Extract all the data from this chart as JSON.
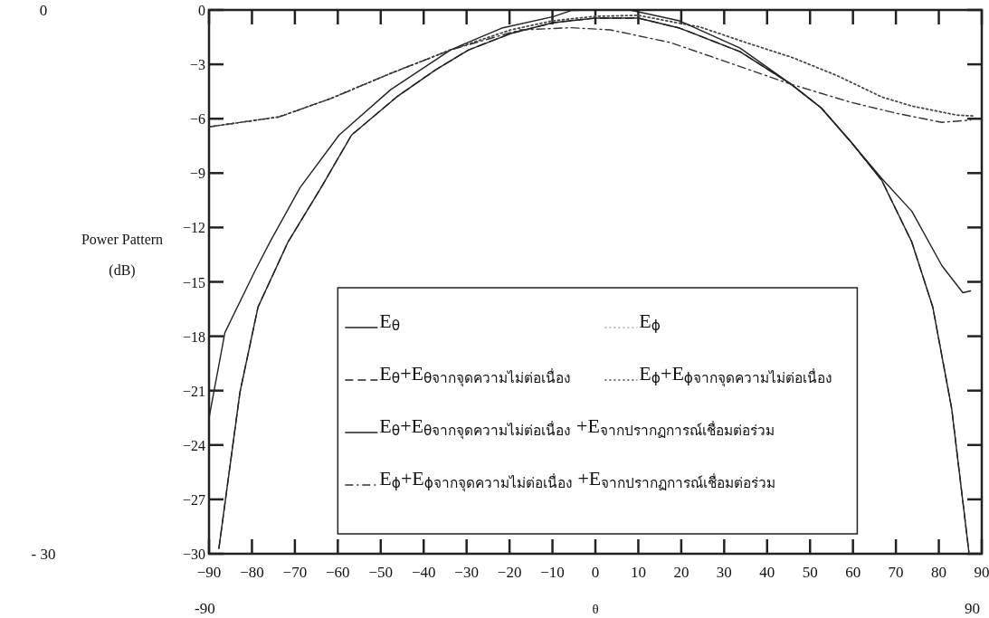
{
  "chart_data": {
    "type": "line",
    "xlabel": "θ",
    "ylabel": "Power Pattern\n(dB)",
    "xlim": [
      -90,
      90
    ],
    "xticks": [
      {
        "value": -90,
        "label": "−90"
      },
      {
        "value": -80,
        "label": "−80"
      },
      {
        "value": -70,
        "label": "−70"
      },
      {
        "value": -60,
        "label": "−60"
      },
      {
        "value": -50,
        "label": "−50"
      },
      {
        "value": -40,
        "label": "−40"
      },
      {
        "value": -30,
        "label": "−30"
      },
      {
        "value": -20,
        "label": "−20"
      },
      {
        "value": -10,
        "label": "−10"
      },
      0,
      10,
      20,
      30,
      40,
      50,
      60,
      70,
      80,
      90
    ],
    "ylim": [
      -30,
      0
    ],
    "yticks": [
      0,
      {
        "value": -3,
        "label": "−3"
      },
      {
        "value": -6,
        "label": "−6"
      },
      {
        "value": -9,
        "label": "−9"
      },
      {
        "value": -12,
        "label": "−12"
      },
      {
        "value": -15,
        "label": "−15"
      },
      {
        "value": -18,
        "label": "−18"
      },
      {
        "value": -21,
        "label": "−21"
      },
      {
        "value": -24,
        "label": "−24"
      },
      {
        "value": -27,
        "label": "−27"
      },
      {
        "value": -30,
        "label": "−30"
      }
    ],
    "grid": false,
    "legend": "bottom",
    "marker": "none",
    "annotations": [
      "0",
      "- 30",
      "-90",
      "90"
    ],
    "series": [
      {
        "name": "E$_{θ}$",
        "color": "#222222",
        "line_style": "solid",
        "x": [
          -87.7,
          -82.8,
          -78.6,
          -71.6,
          -63.9,
          -56.8,
          -46.3,
          -37.2,
          -29.5,
          -19.7,
          -9.8,
          0,
          10,
          19.6,
          33.7,
          45.6,
          52.6,
          59.6,
          66.7,
          73.7,
          78.6,
          83,
          87
        ],
        "values": [
          -29.7,
          -21.1,
          -16.4,
          -12.8,
          -9.8,
          -6.9,
          -4.8,
          -3.3,
          -2.2,
          -1.3,
          -0.7,
          -0.45,
          -0.45,
          -1.0,
          -2.3,
          -4.1,
          -5.4,
          -7.3,
          -9.4,
          -12.8,
          -16.4,
          -22,
          -29.9
        ]
      },
      {
        "name": "E$_{ϕ}$",
        "color": "#aaaaaa",
        "line_style": "dotted",
        "x": [
          -90,
          -73.7,
          -61.8,
          -47.7,
          -33.7,
          -19.7,
          -10,
          0,
          10,
          24.5,
          35.1,
          45.6,
          56.1,
          66.7,
          73.7,
          84.2,
          88
        ],
        "values": [
          -6.45,
          -5.9,
          -4.9,
          -3.5,
          -2.2,
          -1.1,
          -0.6,
          -0.35,
          -0.3,
          -0.95,
          -1.8,
          -2.6,
          -3.6,
          -4.8,
          -5.3,
          -5.8,
          -5.85
        ]
      },
      {
        "name": "E$_{θ}$+E$_{θจากจุดความไม่ต่อเนื่อง}$",
        "color": "#222222",
        "line_style": "dashed",
        "x": [
          -87.7,
          -82.8,
          -78.6,
          -71.6,
          -63.9,
          -56.8,
          -46.3,
          -37.2,
          -29.5,
          -19.7,
          -9.8,
          0,
          10,
          19.6,
          33.7,
          45.6,
          52.6,
          59.6,
          66.7,
          73.7,
          78.6,
          83,
          87
        ],
        "values": [
          -29.7,
          -21.1,
          -16.4,
          -12.8,
          -9.8,
          -6.9,
          -4.8,
          -3.3,
          -2.2,
          -1.3,
          -0.7,
          -0.45,
          -0.45,
          -1.0,
          -2.3,
          -4.1,
          -5.4,
          -7.3,
          -9.4,
          -12.8,
          -16.4,
          -22,
          -29.9
        ]
      },
      {
        "name": "E$_{ϕ}$+E$_{ϕจากจุดความไม่ต่อเนื่อง}$",
        "color": "#444444",
        "line_style": "dotted",
        "x": [
          -90,
          -73.7,
          -61.8,
          -47.7,
          -33.7,
          -19.7,
          -10,
          0,
          10,
          24.5,
          35.1,
          45.6,
          56.1,
          66.7,
          73.7,
          84.2,
          88
        ],
        "values": [
          -6.45,
          -5.9,
          -4.9,
          -3.5,
          -2.2,
          -1.1,
          -0.6,
          -0.35,
          -0.3,
          -0.95,
          -1.8,
          -2.6,
          -3.6,
          -4.8,
          -5.3,
          -5.8,
          -5.85
        ]
      },
      {
        "name": "E$_{θ}$+E$_{θจากจุดความไม่ต่อเนื่อง}$ +E$_{จากปรากฏการณ์เชื่อมต่อร่วม}$",
        "color": "#222222",
        "line_style": "solid",
        "x": [
          -90,
          -86.3,
          -79.3,
          -75.8,
          -68.8,
          -59.7,
          -47.7,
          -33.7,
          -21.8,
          -9.8,
          -5.6,
          0,
          8,
          19.6,
          33.7,
          45.6,
          52.6,
          59.6,
          66.7,
          73.7,
          80.7,
          85.6,
          87.4
        ],
        "values": [
          -22.5,
          -17.8,
          -14.4,
          -12.8,
          -9.8,
          -6.9,
          -4.4,
          -2.2,
          -1.0,
          -0.37,
          -0.03,
          0,
          0,
          -0.6,
          -2.1,
          -4.1,
          -5.4,
          -7.3,
          -9.3,
          -11.1,
          -14.1,
          -15.6,
          -15.5
        ]
      },
      {
        "name": "E$_{ϕ}$+E$_{ϕจากจุดความไม่ต่อเนื่อง}$ +E$_{จากปรากฏการณ์เชื่อมต่อร่วม}$",
        "color": "#333333",
        "line_style": "dashdot",
        "x": [
          -90,
          -73.7,
          -61.8,
          -47.7,
          -33.7,
          -17.5,
          -5.6,
          3.5,
          17.5,
          31.6,
          45.6,
          59.6,
          70.1,
          80.7,
          87.4
        ],
        "values": [
          -6.45,
          -5.9,
          -4.9,
          -3.5,
          -2.2,
          -1.1,
          -0.98,
          -1.1,
          -1.8,
          -2.95,
          -4.1,
          -5.1,
          -5.7,
          -6.2,
          -6.07
        ]
      }
    ]
  }
}
